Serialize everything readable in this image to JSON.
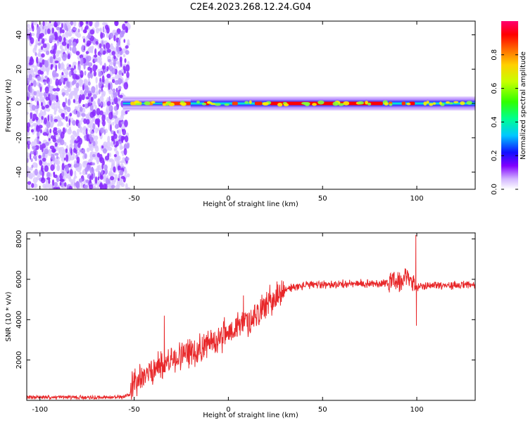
{
  "title": "C2E4.2023.268.12.24.G04",
  "chart_data": [
    {
      "type": "heatmap",
      "xlabel": "Height of straight line (km)",
      "ylabel": "Frequency (Hz)",
      "xlim": [
        -107,
        131
      ],
      "ylim": [
        -50,
        48
      ],
      "x_ticks": [
        -100,
        -50,
        0,
        50,
        100
      ],
      "y_ticks": [
        -40,
        -20,
        0,
        20,
        40
      ],
      "colorbar": {
        "label": "Normalized spectral amplitude",
        "range": [
          0,
          1
        ],
        "ticks": [
          0.0,
          0.2,
          0.4,
          0.6,
          0.8
        ],
        "colors": [
          "#ffffff",
          "#d4b8ff",
          "#8000ff",
          "#0000ff",
          "#00c8ff",
          "#00ff80",
          "#40ff00",
          "#ffff00",
          "#ff8000",
          "#ff0000",
          "#ff0080"
        ]
      },
      "noise_region_x": [
        -107,
        -53
      ],
      "signal_center_hz": 0
    },
    {
      "type": "line",
      "xlabel": "Height of straight line (km)",
      "ylabel": "SNR (10 * v/v)",
      "xlim": [
        -107,
        131
      ],
      "ylim": [
        0,
        8300
      ],
      "x_ticks": [
        -100,
        -50,
        0,
        50,
        100
      ],
      "y_ticks": [
        2000,
        4000,
        6000,
        8000
      ],
      "color": "#e8282a",
      "trend": {
        "x": [
          -107,
          -56,
          -52,
          -50,
          -45,
          -40,
          -35,
          -30,
          -20,
          -10,
          0,
          10,
          20,
          30,
          40,
          50,
          60,
          70,
          80,
          85,
          90,
          95,
          98,
          100,
          105,
          110,
          120,
          131
        ],
        "y": [
          150,
          150,
          300,
          900,
          1200,
          1500,
          1800,
          2000,
          2400,
          2800,
          3400,
          3900,
          4700,
          5500,
          5700,
          5750,
          5750,
          5780,
          5800,
          5850,
          5900,
          6000,
          5800,
          5650,
          5700,
          5720,
          5700,
          5700
        ]
      },
      "spikes": [
        {
          "x": 99.5,
          "y": 8200
        },
        {
          "x": 99.8,
          "y": 3700
        },
        {
          "x": -34,
          "y": 4200
        },
        {
          "x": 8,
          "y": 5200
        }
      ]
    }
  ]
}
